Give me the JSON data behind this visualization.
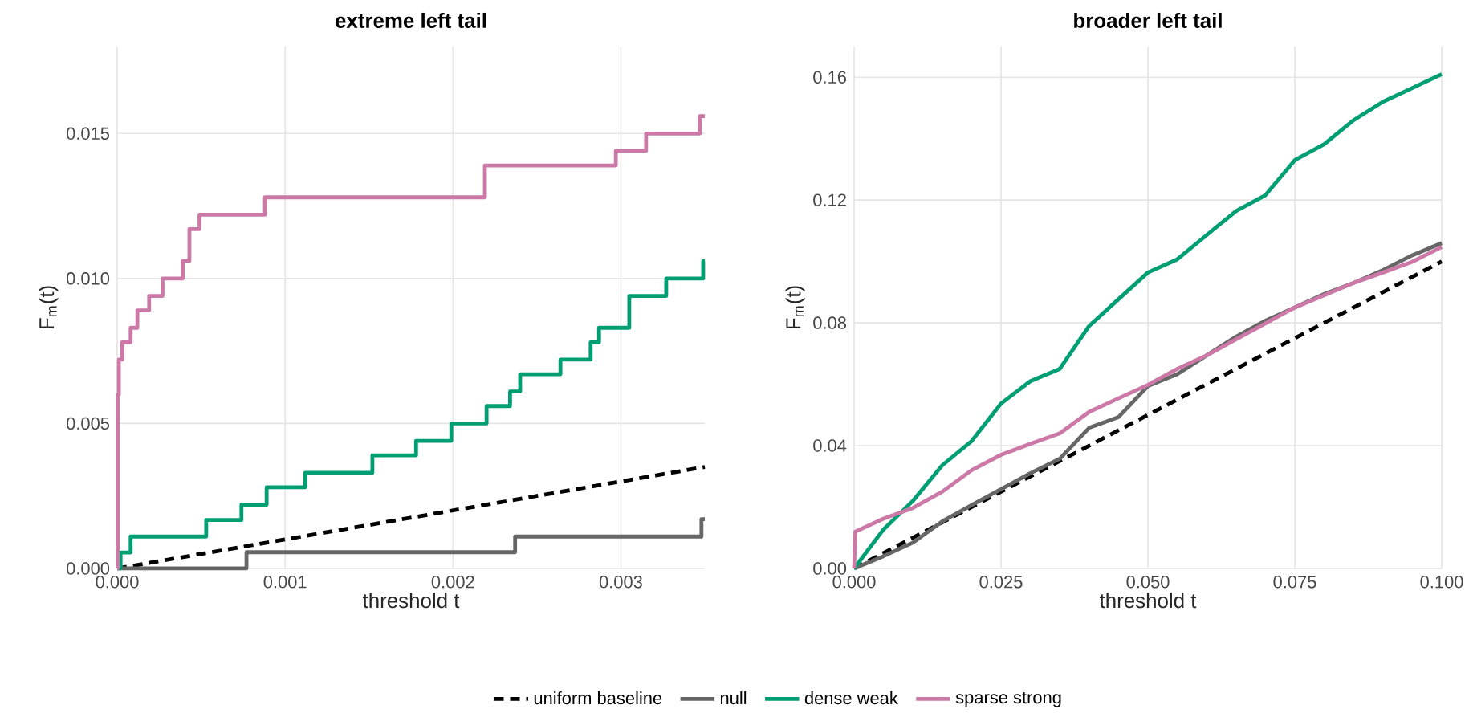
{
  "chart_data": [
    {
      "type": "step",
      "title": "extreme left tail",
      "xlabel": "threshold t",
      "ylabel": "F$_{m}$(t)",
      "grid": true,
      "legend": false,
      "xlim": [
        0,
        0.0035
      ],
      "ylim": [
        0,
        0.018
      ],
      "xticks": [
        {
          "value": 0,
          "label": "0.000"
        },
        {
          "value": 0.001,
          "label": "0.001"
        },
        {
          "value": 0.002,
          "label": "0.002"
        },
        {
          "value": 0.003,
          "label": "0.003"
        }
      ],
      "yticks": [
        {
          "value": 0,
          "label": "0.000"
        },
        {
          "value": 0.005,
          "label": "0.005"
        },
        {
          "value": 0.01,
          "label": "0.010"
        },
        {
          "value": 0.015,
          "label": "0.015"
        }
      ],
      "series": [
        {
          "type": "line",
          "line_style": "dashed",
          "color": "#000000",
          "x": [
            0,
            0.0035
          ],
          "values": [
            0,
            0.0035
          ]
        },
        {
          "color": "#666666",
          "x": [
            0,
            0.00077,
            0.00237,
            0.00348,
            0.0035
          ],
          "values": [
            0,
            0.00056,
            0.0011,
            0.0017,
            0.0017
          ]
        },
        {
          "color": "#009e73",
          "x": [
            0,
            2e-05,
            8e-05,
            0.00053,
            0.00074,
            0.00089,
            0.00112,
            0.00152,
            0.00178,
            0.00199,
            0.0022,
            0.00234,
            0.0024,
            0.00264,
            0.00282,
            0.00287,
            0.00305,
            0.00327,
            0.00349,
            0.0035
          ],
          "values": [
            0,
            0.00055,
            0.0011,
            0.00167,
            0.0022,
            0.0028,
            0.0033,
            0.0039,
            0.0044,
            0.005,
            0.0056,
            0.0061,
            0.0067,
            0.0072,
            0.0078,
            0.0083,
            0.0094,
            0.01,
            0.0106,
            0.0106
          ]
        },
        {
          "color": "#cc79a7",
          "x": [
            0,
            3e-06,
            1e-05,
            3e-05,
            8e-05,
            0.00012,
            0.00019,
            0.00027,
            0.00039,
            0.00043,
            0.00049,
            0.00088,
            0.00219,
            0.00297,
            0.00315,
            0.00347,
            0.0035
          ],
          "values": [
            0,
            0.006,
            0.0072,
            0.0078,
            0.0083,
            0.0089,
            0.0094,
            0.01,
            0.0106,
            0.0117,
            0.0122,
            0.0128,
            0.0139,
            0.0144,
            0.015,
            0.0156,
            0.0156
          ]
        }
      ]
    },
    {
      "type": "line",
      "title": "broader left tail",
      "xlabel": "threshold t",
      "ylabel": "F$_{m}$(t)",
      "grid": true,
      "legend": "bottom",
      "xlim": [
        0,
        0.1
      ],
      "ylim": [
        0,
        0.17
      ],
      "xticks": [
        {
          "value": 0,
          "label": "0.000"
        },
        {
          "value": 0.025,
          "label": "0.025"
        },
        {
          "value": 0.05,
          "label": "0.050"
        },
        {
          "value": 0.075,
          "label": "0.075"
        },
        {
          "value": 0.1,
          "label": "0.100"
        }
      ],
      "yticks": [
        {
          "value": 0,
          "label": "0.00"
        },
        {
          "value": 0.04,
          "label": "0.04"
        },
        {
          "value": 0.08,
          "label": "0.08"
        },
        {
          "value": 0.12,
          "label": "0.12"
        },
        {
          "value": 0.16,
          "label": "0.16"
        }
      ],
      "series": [
        {
          "name": "uniform baseline",
          "line_style": "dashed",
          "color": "#000000",
          "x": [
            0,
            0.1
          ],
          "values": [
            0,
            0.1
          ]
        },
        {
          "name": "null",
          "color": "#666666",
          "x": [
            0,
            0.005,
            0.01,
            0.015,
            0.02,
            0.025,
            0.03,
            0.035,
            0.04,
            0.045,
            0.05,
            0.055,
            0.06,
            0.065,
            0.07,
            0.075,
            0.08,
            0.085,
            0.09,
            0.095,
            0.1
          ],
          "values": [
            0,
            0.004,
            0.0084,
            0.0153,
            0.0206,
            0.0258,
            0.031,
            0.0357,
            0.0458,
            0.0493,
            0.0594,
            0.0633,
            0.0694,
            0.0755,
            0.0807,
            0.085,
            0.0894,
            0.093,
            0.0972,
            0.102,
            0.106
          ]
        },
        {
          "name": "dense weak",
          "color": "#009e73",
          "x": [
            0,
            0.005,
            0.01,
            0.015,
            0.02,
            0.025,
            0.03,
            0.035,
            0.04,
            0.045,
            0.05,
            0.055,
            0.06,
            0.065,
            0.07,
            0.075,
            0.08,
            0.085,
            0.09,
            0.095,
            0.1
          ],
          "values": [
            0,
            0.0127,
            0.022,
            0.0336,
            0.0415,
            0.0537,
            0.061,
            0.065,
            0.079,
            0.0877,
            0.0964,
            0.1007,
            0.1086,
            0.1164,
            0.1216,
            0.133,
            0.1382,
            0.146,
            0.152,
            0.1565,
            0.161
          ]
        },
        {
          "name": "sparse strong",
          "color": "#cc79a7",
          "x": [
            0,
            0.0002,
            0.005,
            0.01,
            0.015,
            0.02,
            0.025,
            0.03,
            0.035,
            0.04,
            0.045,
            0.05,
            0.055,
            0.06,
            0.065,
            0.07,
            0.075,
            0.08,
            0.085,
            0.09,
            0.095,
            0.1
          ],
          "values": [
            0,
            0.012,
            0.0162,
            0.0197,
            0.025,
            0.032,
            0.037,
            0.0406,
            0.044,
            0.051,
            0.0554,
            0.0598,
            0.065,
            0.0694,
            0.0746,
            0.0798,
            0.085,
            0.089,
            0.093,
            0.0964,
            0.0999,
            0.1047
          ]
        }
      ]
    }
  ]
}
